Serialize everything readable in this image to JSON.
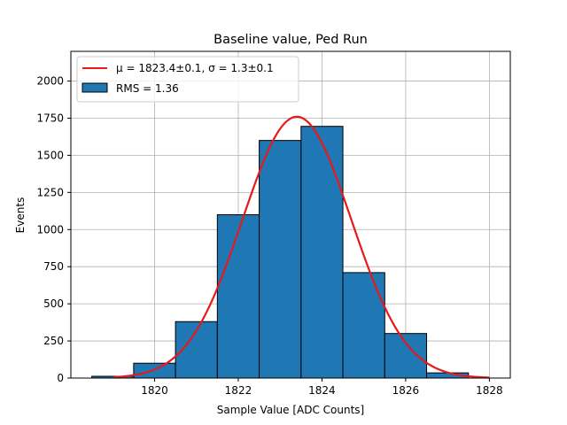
{
  "chart_data": {
    "type": "bar",
    "title": "Baseline value, Ped Run",
    "xlabel": "Sample Value [ADC Counts]",
    "ylabel": "Events",
    "xlim": [
      1818.0,
      1828.5
    ],
    "ylim": [
      0,
      2200
    ],
    "xticks": [
      1820,
      1822,
      1824,
      1826,
      1828
    ],
    "yticks": [
      0,
      250,
      500,
      750,
      1000,
      1250,
      1500,
      1750,
      2000
    ],
    "grid": true,
    "legend_position": "top-left",
    "bins": [
      {
        "left": 1818.5,
        "right": 1819.5,
        "count": 12
      },
      {
        "left": 1819.5,
        "right": 1820.5,
        "count": 100
      },
      {
        "left": 1820.5,
        "right": 1821.5,
        "count": 380
      },
      {
        "left": 1821.5,
        "right": 1822.5,
        "count": 1100
      },
      {
        "left": 1822.5,
        "right": 1823.5,
        "count": 1600
      },
      {
        "left": 1823.5,
        "right": 1824.5,
        "count": 1695
      },
      {
        "left": 1824.5,
        "right": 1825.5,
        "count": 710
      },
      {
        "left": 1825.5,
        "right": 1826.5,
        "count": 300
      },
      {
        "left": 1826.5,
        "right": 1827.5,
        "count": 35
      }
    ],
    "fit": {
      "type": "gaussian",
      "mean": 1823.4,
      "sigma": 1.3,
      "amplitude": 1760,
      "x_range": [
        1819.0,
        1828.0
      ]
    },
    "legend": [
      {
        "label": "μ = 1823.4±0.1, σ = 1.3±0.1",
        "kind": "line"
      },
      {
        "label": "RMS = 1.36",
        "kind": "patch"
      }
    ],
    "colors": {
      "bar_fill": "#1f77b4",
      "bar_edge": "#000000",
      "fit_line": "#e41a1c",
      "grid": "#b0b0b0"
    }
  }
}
